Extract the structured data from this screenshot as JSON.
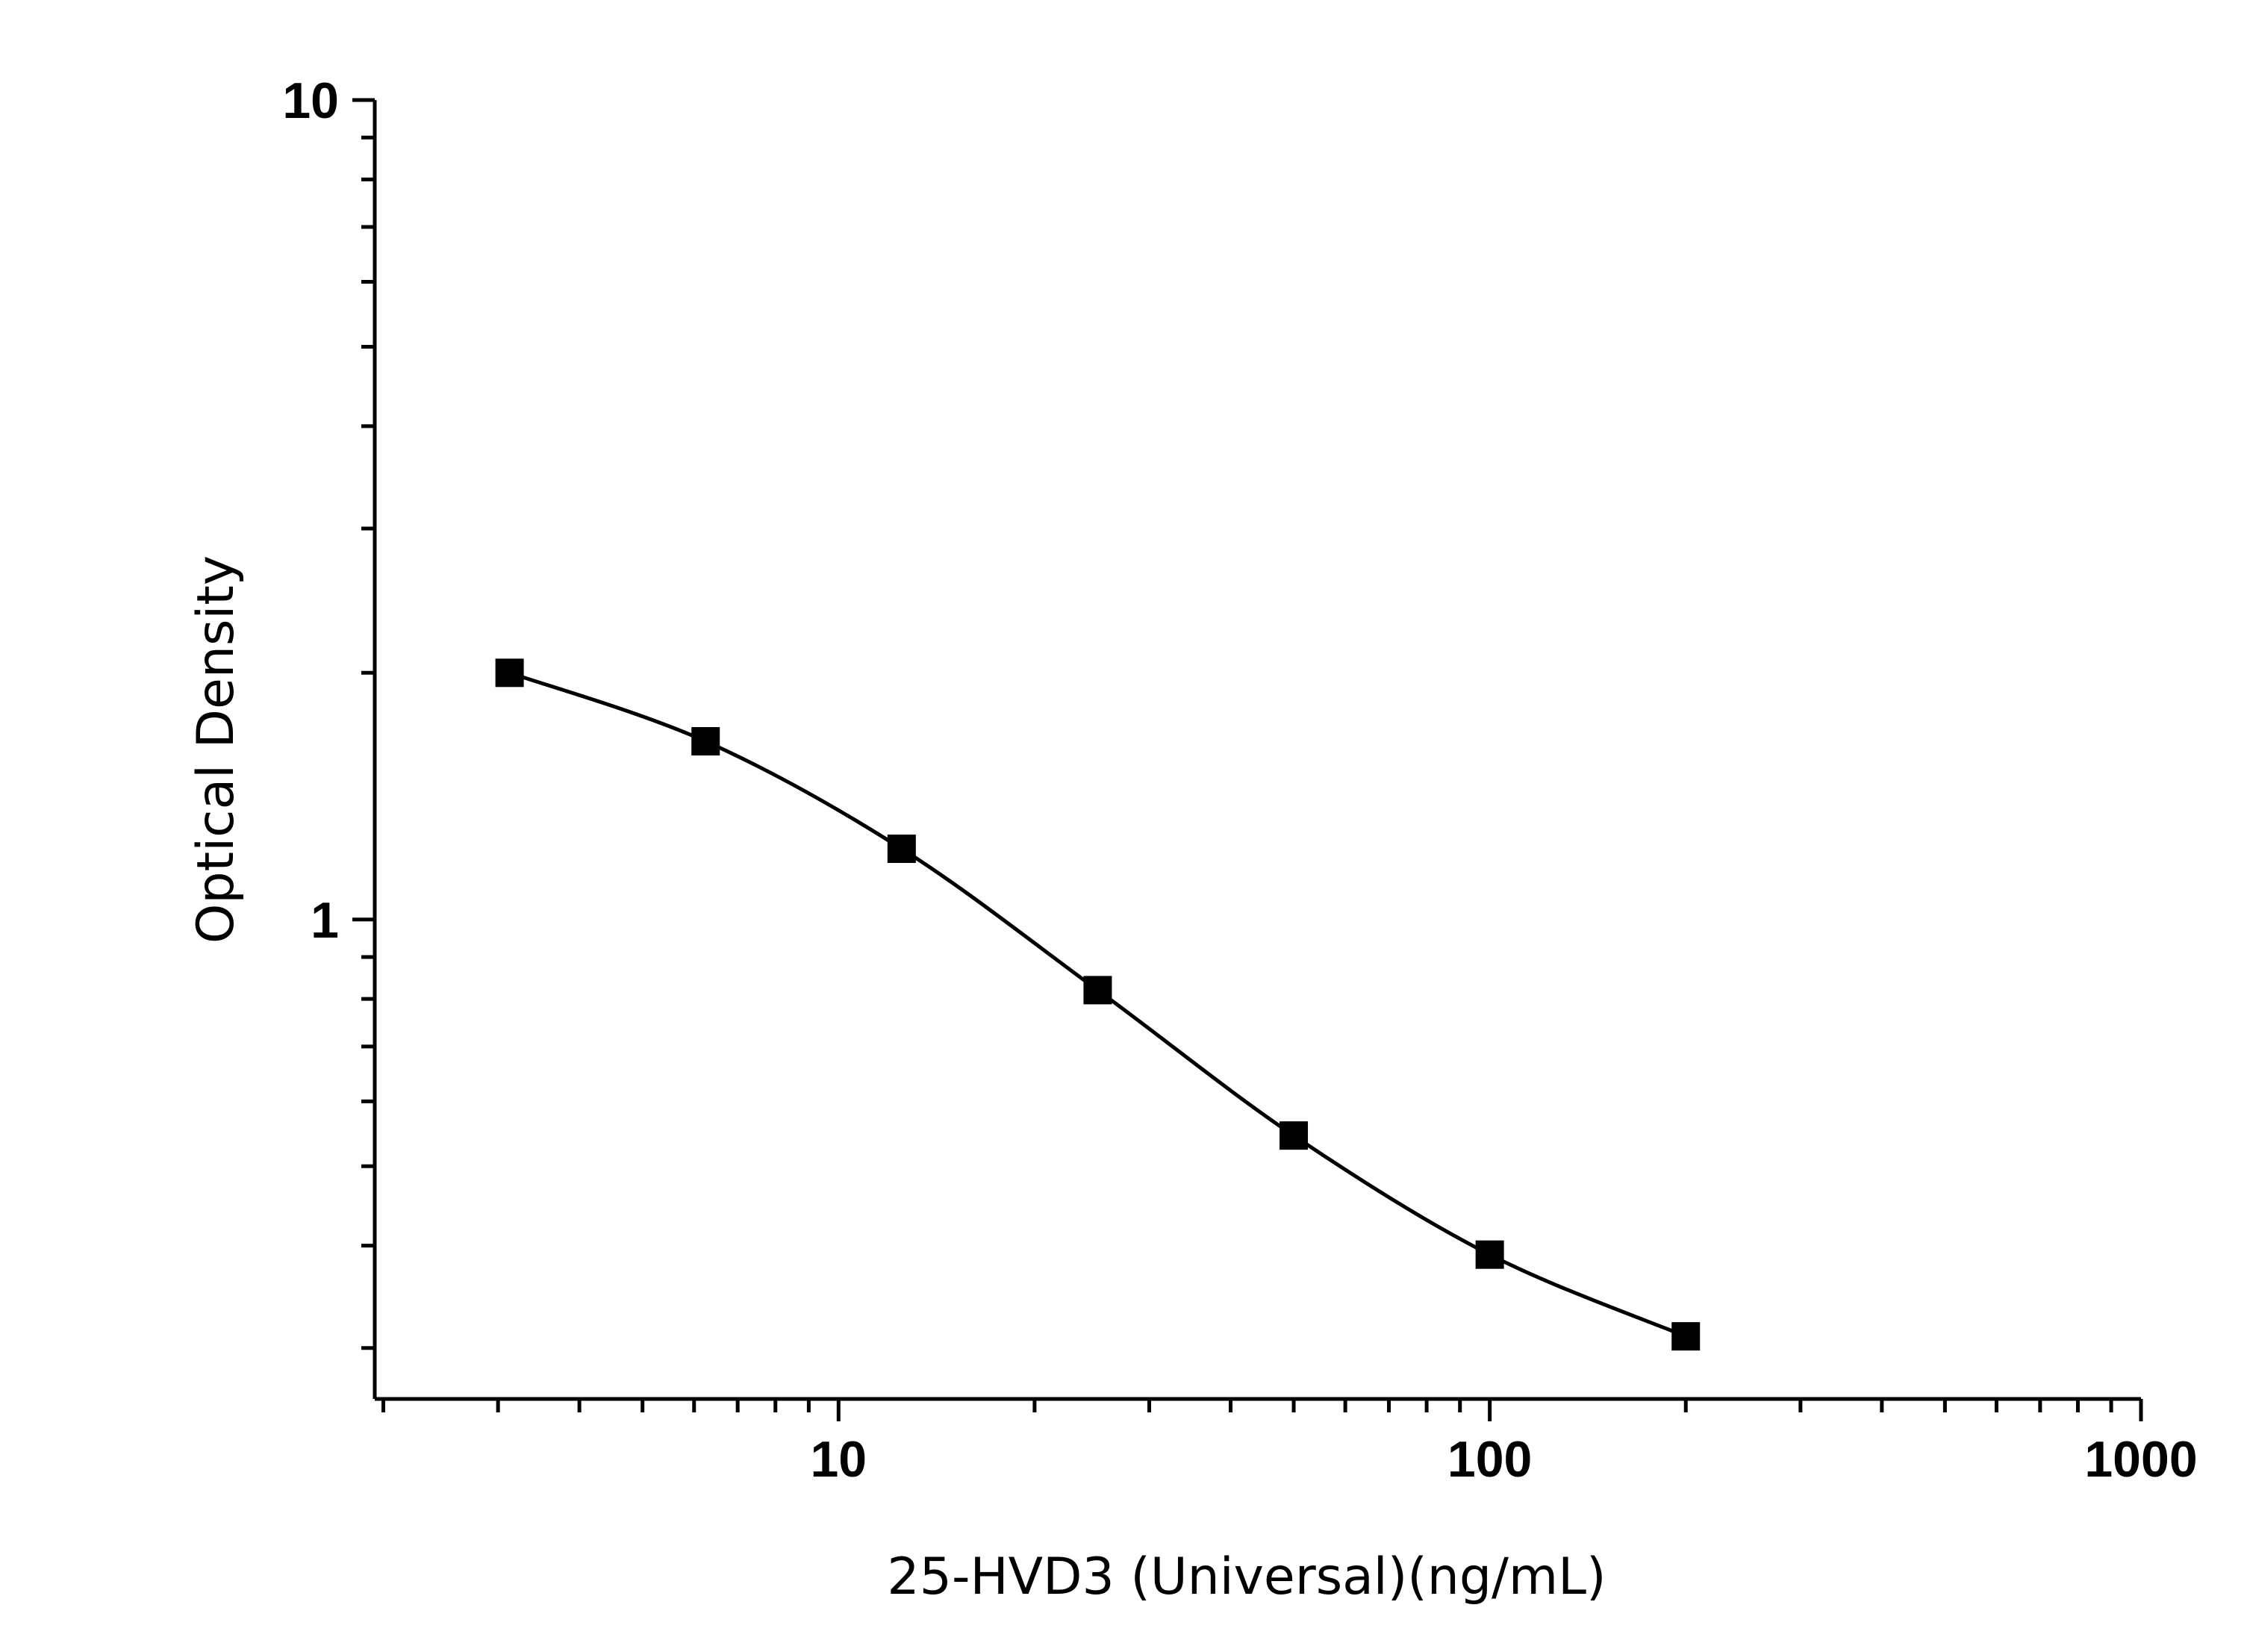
{
  "chart_data": {
    "type": "scatter",
    "title": "",
    "xlabel": "25-HVD3 (Universal)(ng/mL)",
    "ylabel": "Optical Density",
    "x_scale": "log",
    "y_scale": "log",
    "xlim": [
      1.94,
      1000
    ],
    "ylim": [
      0.26,
      10
    ],
    "x_ticks": [
      {
        "value": 10,
        "label": "10"
      },
      {
        "value": 100,
        "label": "100"
      },
      {
        "value": 1000,
        "label": "1000"
      }
    ],
    "y_ticks": [
      {
        "value": 1,
        "label": "1"
      },
      {
        "value": 10,
        "label": "10"
      }
    ],
    "grid": false,
    "legend": "none",
    "series": [
      {
        "marker": "square",
        "color": "#000000",
        "fit_line": "smooth",
        "x": [
          3.125,
          6.25,
          12.5,
          25,
          50,
          100,
          200
        ],
        "y": [
          2.0,
          1.65,
          1.22,
          0.82,
          0.545,
          0.39,
          0.31
        ]
      }
    ]
  }
}
